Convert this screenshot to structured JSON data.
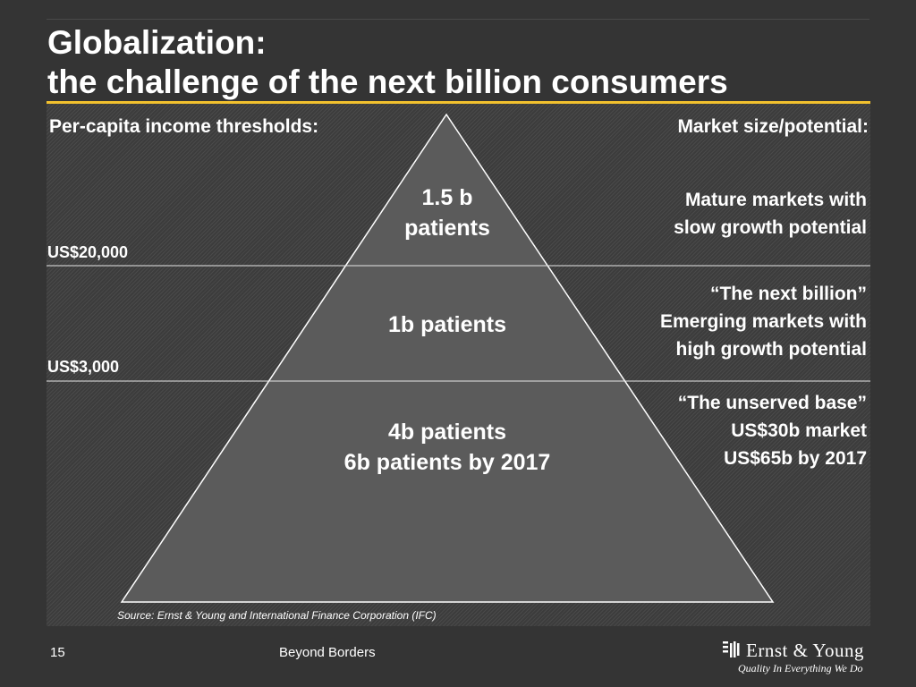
{
  "slide": {
    "title_line1": "Globalization:",
    "title_line2": "the challenge of the next billion consumers",
    "accent_color": "#f2c12e",
    "background_color": "#343434"
  },
  "headers": {
    "left": "Per-capita income thresholds:",
    "right": "Market size/potential:"
  },
  "thresholds": {
    "upper": "US$20,000",
    "lower": "US$3,000"
  },
  "pyramid": {
    "fill_color": "#5b5b5b",
    "top": {
      "line1": "1.5 b",
      "line2": "patients"
    },
    "middle": {
      "line1": "1b patients"
    },
    "bottom": {
      "line1": "4b patients",
      "line2": "6b patients by 2017"
    }
  },
  "markets": {
    "top": {
      "line1": "Mature markets with",
      "line2": "slow growth potential"
    },
    "middle": {
      "line1": "“The next billion”",
      "line2": "Emerging markets with",
      "line3": "high growth potential"
    },
    "bottom": {
      "line1": "“The unserved base”",
      "line2": "US$30b market",
      "line3": "US$65b by 2017"
    }
  },
  "source": "Source: Ernst & Young and International Finance Corporation (IFC)",
  "footer": {
    "page_number": "15",
    "title": "Beyond Borders"
  },
  "logo": {
    "name": "Ernst & Young",
    "tagline": "Quality In Everything We Do",
    "icon": "ey-bars-logo-icon"
  }
}
